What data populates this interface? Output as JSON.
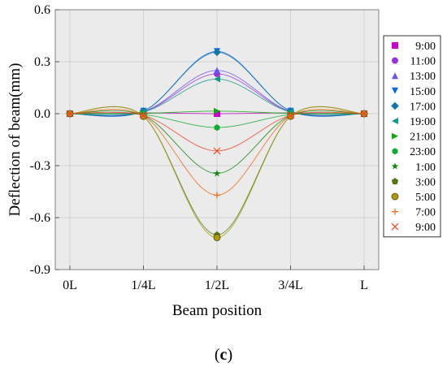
{
  "chart_data": {
    "type": "line",
    "title": "",
    "xlabel": "Beam position",
    "ylabel": "Deflection of beam(mm)",
    "categories": [
      "0L",
      "1/4L",
      "1/2L",
      "3/4L",
      "L"
    ],
    "x": [
      0,
      0.25,
      0.5,
      0.75,
      1
    ],
    "ylim": [
      -0.9,
      0.6
    ],
    "yticks": [
      "0.6",
      "0.3",
      "0.0",
      "-0.3",
      "-0.6",
      "-0.9"
    ],
    "ytick_values": [
      0.6,
      0.3,
      0.0,
      -0.3,
      -0.6,
      -0.9
    ],
    "grid": true,
    "legend_position": "right",
    "series": [
      {
        "name": "9:00",
        "color": "#cc00cc",
        "marker": "square",
        "values": [
          0,
          0.005,
          0.0,
          0.005,
          0
        ]
      },
      {
        "name": "11:00",
        "color": "#9933dd",
        "marker": "circle",
        "values": [
          0,
          0.01,
          0.23,
          0.01,
          0
        ]
      },
      {
        "name": "13:00",
        "color": "#6655ee",
        "marker": "triangle-up",
        "values": [
          0,
          0.012,
          0.25,
          0.012,
          0
        ]
      },
      {
        "name": "15:00",
        "color": "#1166ee",
        "marker": "triangle-down",
        "values": [
          0,
          0.015,
          0.36,
          0.015,
          0
        ]
      },
      {
        "name": "17:00",
        "color": "#1177aa",
        "marker": "diamond",
        "values": [
          0,
          0.015,
          0.355,
          0.015,
          0
        ]
      },
      {
        "name": "19:00",
        "color": "#119988",
        "marker": "triangle-left",
        "values": [
          0,
          0.01,
          0.2,
          0.01,
          0
        ]
      },
      {
        "name": "21:00",
        "color": "#11aa11",
        "marker": "triangle-right",
        "values": [
          0,
          0.002,
          0.015,
          0.002,
          0
        ]
      },
      {
        "name": "23:00",
        "color": "#11aa33",
        "marker": "hexagon",
        "values": [
          0,
          -0.005,
          -0.08,
          -0.005,
          0
        ]
      },
      {
        "name": "1:00",
        "color": "#118811",
        "marker": "star",
        "values": [
          0,
          -0.01,
          -0.345,
          -0.01,
          0
        ]
      },
      {
        "name": "3:00",
        "color": "#557711",
        "marker": "pentagon",
        "values": [
          0,
          -0.015,
          -0.7,
          -0.015,
          0
        ]
      },
      {
        "name": "5:00",
        "color": "#aa9911",
        "marker": "ball",
        "values": [
          0,
          -0.015,
          -0.715,
          -0.015,
          0
        ]
      },
      {
        "name": "7:00",
        "color": "#ee6611",
        "marker": "plus",
        "values": [
          0,
          -0.012,
          -0.47,
          -0.012,
          0
        ]
      },
      {
        "name": "9:00",
        "color": "#ee4422",
        "marker": "cross",
        "values": [
          0,
          -0.01,
          -0.215,
          -0.01,
          0
        ]
      }
    ]
  },
  "panel_label": {
    "open": "(",
    "letter": "c",
    "close": ")"
  }
}
